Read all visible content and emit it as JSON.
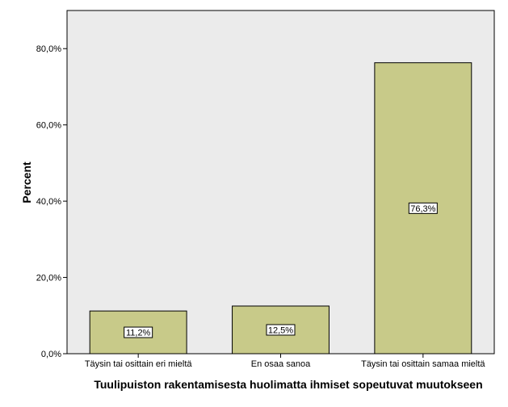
{
  "chart_data": {
    "type": "bar",
    "categories": [
      "Täysin tai osittain eri mieltä",
      "En osaa sanoa",
      "Täysin tai osittain samaa mieltä"
    ],
    "values": [
      11.2,
      12.5,
      76.3
    ],
    "data_labels": [
      "11,2%",
      "12,5%",
      "76,3%"
    ],
    "title": "",
    "xlabel": "Tuulipuiston rakentamisesta huolimatta ihmiset sopeutuvat muutokseen",
    "ylabel": "Percent",
    "ylim": [
      0,
      90
    ],
    "yticks": [
      0,
      20,
      40,
      60,
      80
    ],
    "ytick_labels": [
      "0,0%",
      "20,0%",
      "40,0%",
      "60,0%",
      "80,0%"
    ],
    "grid": false,
    "legend": "none",
    "colors": {
      "bar_fill": "#c8ca89",
      "bar_stroke": "#000000",
      "plot_background": "#ebebeb",
      "page_background": "#ffffff"
    }
  }
}
